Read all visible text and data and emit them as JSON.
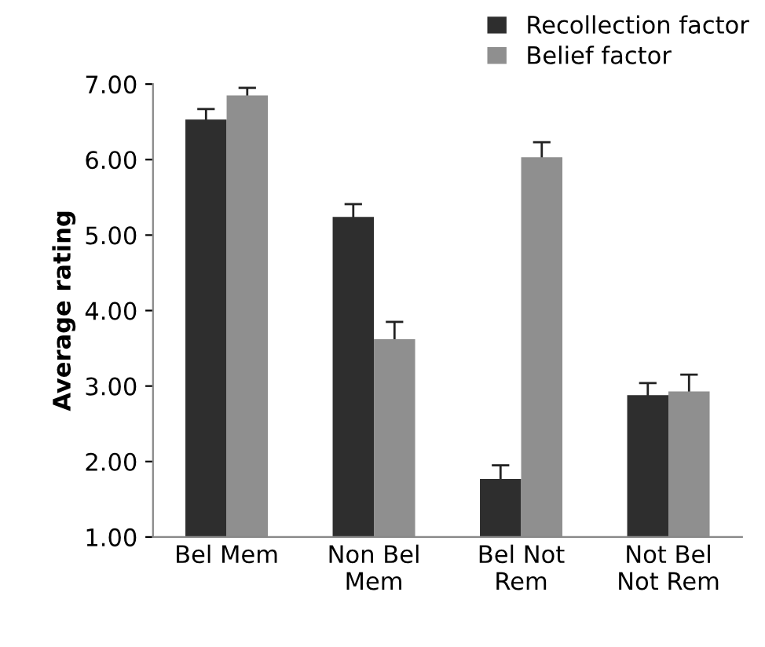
{
  "chart_data": {
    "type": "bar",
    "ylabel": "Average rating",
    "categories": [
      "Bel Mem",
      "Non Bel\nMem",
      "Bel Not\nRem",
      "Not Bel\nNot Rem"
    ],
    "series": [
      {
        "name": "Recollection factor",
        "color": "#2e2e2e",
        "values": [
          6.53,
          5.24,
          1.77,
          2.88
        ],
        "errors": [
          0.14,
          0.17,
          0.18,
          0.16
        ]
      },
      {
        "name": "Belief factor",
        "color": "#8f8f8f",
        "values": [
          6.85,
          3.62,
          6.03,
          2.93
        ],
        "errors": [
          0.1,
          0.23,
          0.2,
          0.22
        ]
      }
    ],
    "ylim": [
      1,
      7
    ],
    "yticks": [
      {
        "value": 1,
        "label": "1.00"
      },
      {
        "value": 2,
        "label": "2.00"
      },
      {
        "value": 3,
        "label": "3.00"
      },
      {
        "value": 4,
        "label": "4.00"
      },
      {
        "value": 5,
        "label": "5.00"
      },
      {
        "value": 6,
        "label": "6.00"
      },
      {
        "value": 7,
        "label": "7.00"
      }
    ],
    "grid": false,
    "legend": "top right"
  }
}
